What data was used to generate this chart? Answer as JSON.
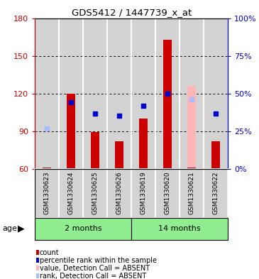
{
  "title": "GDS5412 / 1447739_x_at",
  "samples": [
    "GSM1330623",
    "GSM1330624",
    "GSM1330625",
    "GSM1330626",
    "GSM1330619",
    "GSM1330620",
    "GSM1330621",
    "GSM1330622"
  ],
  "bar_values": [
    60.5,
    120,
    89,
    82,
    100,
    163,
    60,
    82
  ],
  "bar_absent": [
    false,
    false,
    false,
    false,
    false,
    false,
    true,
    false
  ],
  "absent_bar_top": [
    0,
    0,
    0,
    0,
    0,
    0,
    126,
    0
  ],
  "dot_values": [
    null,
    113,
    104,
    102,
    110,
    120,
    null,
    104
  ],
  "dot_absent_values": [
    92,
    null,
    null,
    null,
    null,
    null,
    115,
    null
  ],
  "ylim": [
    60,
    180
  ],
  "y_ticks": [
    60,
    90,
    120,
    150,
    180
  ],
  "y2_ticks": [
    0,
    25,
    50,
    75,
    100
  ],
  "bar_color": "#cc0000",
  "bar_absent_color": "#ffb6b6",
  "dot_color": "#0000cc",
  "dot_absent_color": "#aabbff",
  "ylabel_color": "#cc0000",
  "y2label_color": "#0000cc",
  "bar_bottom": 60,
  "bg_color": "#ffffff",
  "col_bg_color": "#d3d3d3",
  "group_color": "#90EE90",
  "bar_width": 0.35,
  "groups": [
    [
      0,
      3,
      "2 months"
    ],
    [
      4,
      7,
      "14 months"
    ]
  ]
}
